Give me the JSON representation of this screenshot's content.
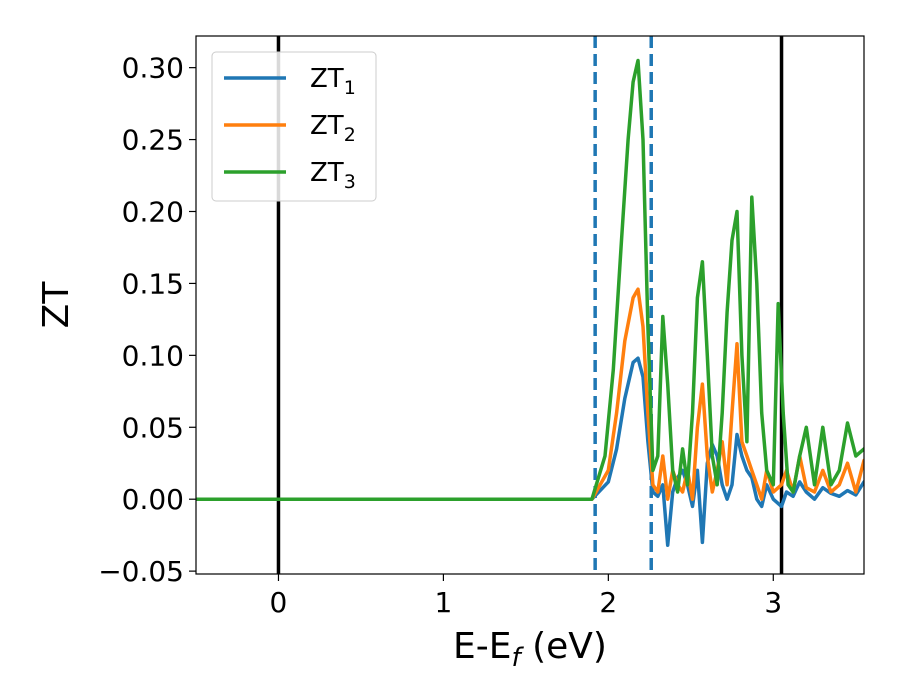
{
  "chart_data": {
    "type": "line",
    "title": "",
    "xlabel": {
      "base": "E-E",
      "sub": "f",
      "suffix": " (eV)"
    },
    "ylabel": "ZT",
    "xlim": [
      -0.5,
      3.55
    ],
    "ylim": [
      -0.052,
      0.322
    ],
    "xticks": [
      0,
      1,
      2,
      3
    ],
    "yticks": [
      -0.05,
      0.0,
      0.05,
      0.1,
      0.15,
      0.2,
      0.25,
      0.3
    ],
    "ytick_labels": [
      "−0.05",
      "0.00",
      "0.05",
      "0.10",
      "0.15",
      "0.20",
      "0.25",
      "0.30"
    ],
    "grid": false,
    "legend_position": "top-left",
    "vertical_lines": [
      {
        "x": 0.0,
        "style": "solid",
        "color": "#000000"
      },
      {
        "x": 3.05,
        "style": "solid",
        "color": "#000000"
      },
      {
        "x": 1.92,
        "style": "dashed",
        "color": "#1f77b4"
      },
      {
        "x": 2.26,
        "style": "dashed",
        "color": "#1f77b4"
      }
    ],
    "series": [
      {
        "name": "ZT",
        "sub": "1",
        "color": "#1f77b4",
        "x": [
          -0.5,
          1.9,
          2.0,
          2.05,
          2.1,
          2.15,
          2.18,
          2.21,
          2.24,
          2.27,
          2.3,
          2.33,
          2.36,
          2.39,
          2.42,
          2.45,
          2.48,
          2.51,
          2.54,
          2.57,
          2.6,
          2.63,
          2.66,
          2.69,
          2.72,
          2.75,
          2.78,
          2.81,
          2.84,
          2.87,
          2.9,
          2.93,
          2.96,
          3.0,
          3.05,
          3.08,
          3.12,
          3.16,
          3.2,
          3.25,
          3.3,
          3.35,
          3.4,
          3.45,
          3.5,
          3.55
        ],
        "y": [
          0.0,
          0.0,
          0.012,
          0.035,
          0.07,
          0.095,
          0.098,
          0.085,
          0.04,
          0.005,
          0.002,
          0.01,
          -0.032,
          0.005,
          0.015,
          0.02,
          0.01,
          -0.005,
          0.02,
          -0.03,
          0.025,
          0.038,
          0.03,
          0.01,
          0.0,
          0.01,
          0.045,
          0.03,
          0.02,
          0.015,
          0.0,
          -0.005,
          0.01,
          0.0,
          -0.005,
          0.005,
          0.002,
          0.012,
          0.005,
          0.0,
          0.008,
          0.004,
          0.002,
          0.006,
          0.003,
          0.012
        ]
      },
      {
        "name": "ZT",
        "sub": "2",
        "color": "#ff7f0e",
        "x": [
          -0.5,
          1.9,
          2.0,
          2.05,
          2.1,
          2.15,
          2.18,
          2.21,
          2.24,
          2.27,
          2.3,
          2.33,
          2.36,
          2.39,
          2.42,
          2.45,
          2.48,
          2.51,
          2.54,
          2.57,
          2.6,
          2.63,
          2.66,
          2.69,
          2.72,
          2.75,
          2.78,
          2.81,
          2.84,
          2.87,
          2.9,
          2.93,
          2.96,
          3.0,
          3.05,
          3.08,
          3.12,
          3.16,
          3.2,
          3.25,
          3.3,
          3.35,
          3.4,
          3.45,
          3.5,
          3.55
        ],
        "y": [
          0.0,
          0.0,
          0.02,
          0.06,
          0.11,
          0.14,
          0.146,
          0.12,
          0.06,
          0.01,
          0.005,
          0.03,
          0.0,
          0.02,
          0.01,
          0.005,
          0.02,
          0.0,
          0.05,
          0.08,
          0.03,
          0.005,
          0.02,
          0.04,
          0.01,
          0.06,
          0.108,
          0.04,
          0.03,
          0.02,
          0.01,
          0.0,
          0.02,
          0.005,
          0.01,
          0.02,
          0.005,
          0.03,
          0.008,
          0.005,
          0.02,
          0.005,
          0.01,
          0.025,
          0.005,
          0.027
        ]
      },
      {
        "name": "ZT",
        "sub": "3",
        "color": "#2ca02c",
        "x": [
          -0.5,
          1.9,
          1.98,
          2.03,
          2.08,
          2.12,
          2.15,
          2.18,
          2.21,
          2.24,
          2.27,
          2.3,
          2.33,
          2.36,
          2.39,
          2.42,
          2.45,
          2.48,
          2.51,
          2.54,
          2.57,
          2.6,
          2.63,
          2.66,
          2.69,
          2.72,
          2.75,
          2.78,
          2.81,
          2.84,
          2.87,
          2.9,
          2.93,
          2.96,
          3.0,
          3.03,
          3.06,
          3.09,
          3.12,
          3.16,
          3.2,
          3.25,
          3.3,
          3.35,
          3.4,
          3.45,
          3.5,
          3.55
        ],
        "y": [
          0.0,
          0.0,
          0.03,
          0.09,
          0.18,
          0.25,
          0.29,
          0.305,
          0.25,
          0.12,
          0.02,
          0.03,
          0.127,
          0.08,
          0.02,
          0.005,
          0.035,
          0.01,
          0.06,
          0.14,
          0.165,
          0.1,
          0.03,
          0.01,
          0.06,
          0.13,
          0.18,
          0.2,
          0.1,
          0.04,
          0.21,
          0.15,
          0.06,
          0.02,
          0.01,
          0.136,
          0.06,
          0.01,
          0.005,
          0.03,
          0.05,
          0.01,
          0.05,
          0.01,
          0.02,
          0.053,
          0.03,
          0.035
        ]
      }
    ]
  }
}
